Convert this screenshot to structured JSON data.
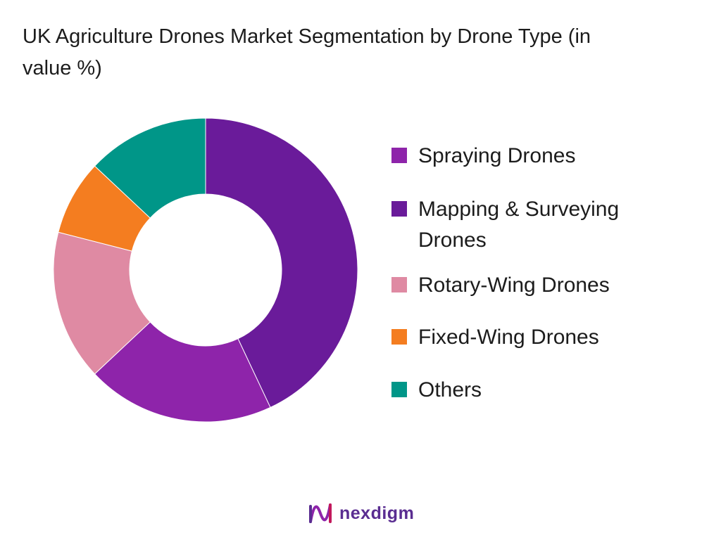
{
  "chart_data": {
    "type": "pie",
    "variant": "donut",
    "title": "UK Agriculture Drones Market Segmentation by Drone Type (in value %)",
    "legend_position": "right",
    "categories": [
      "Mapping & Surveying Drones",
      "Spraying Drones",
      "Rotary-Wing Drones",
      "Fixed-Wing Drones",
      "Others"
    ],
    "values": [
      43,
      20,
      16,
      8,
      13
    ],
    "colors": [
      "#6a1b9a",
      "#8e24aa",
      "#df8aa3",
      "#f47d20",
      "#009688"
    ],
    "legend": [
      {
        "label": "Spraying Drones",
        "color": "#8e24aa"
      },
      {
        "label": "Mapping & Surveying Drones",
        "color": "#6a1b9a"
      },
      {
        "label": "Rotary-Wing Drones",
        "color": "#df8aa3"
      },
      {
        "label": "Fixed-Wing Drones",
        "color": "#f47d20"
      },
      {
        "label": "Others",
        "color": "#009688"
      }
    ]
  },
  "brand": {
    "name": "nexdigm",
    "color": "#5a2d91"
  }
}
